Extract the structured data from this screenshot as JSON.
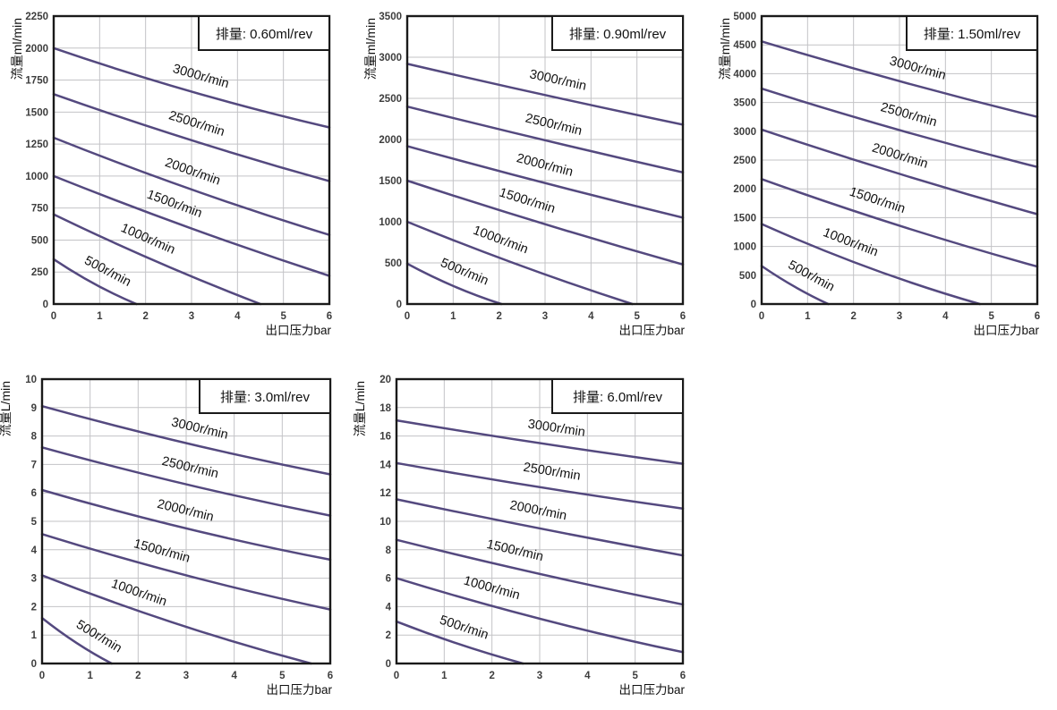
{
  "page": {
    "background": "#ffffff",
    "description": "Pump flow vs outlet pressure performance curves at five displacements"
  },
  "chart_data": [
    {
      "type": "line",
      "title": "排量: 0.60ml/rev",
      "xlabel": "出口压力bar",
      "ylabel": "流量ml/min",
      "xlim": [
        0,
        6
      ],
      "ylim": [
        0,
        2250
      ],
      "xticks": [
        "0",
        "1",
        "2",
        "3",
        "4",
        "5",
        "6"
      ],
      "yticks": [
        "0",
        "250",
        "500",
        "750",
        "1000",
        "1250",
        "1500",
        "1750",
        "2000",
        "2250"
      ],
      "grid": true,
      "legend_position": "labels-on-curves",
      "line_color": "#54497f",
      "series": [
        {
          "name": "3000r/min",
          "label_x": 3.1,
          "points": [
            [
              0,
              2000
            ],
            [
              3,
              1660
            ],
            [
              6,
              1380
            ]
          ]
        },
        {
          "name": "2500r/min",
          "label_x": 3.0,
          "points": [
            [
              0,
              1640
            ],
            [
              3,
              1280
            ],
            [
              6,
              960
            ]
          ]
        },
        {
          "name": "2000r/min",
          "label_x": 2.9,
          "points": [
            [
              0,
              1300
            ],
            [
              3,
              895
            ],
            [
              6,
              540
            ]
          ]
        },
        {
          "name": "1500r/min",
          "label_x": 2.5,
          "points": [
            [
              0,
              1000
            ],
            [
              3,
              590
            ],
            [
              6,
              220
            ]
          ]
        },
        {
          "name": "1000r/min",
          "label_x": 1.9,
          "points": [
            [
              0,
              700
            ],
            [
              2.25,
              330
            ],
            [
              4.5,
              0
            ]
          ]
        },
        {
          "name": "500r/min",
          "label_x": 1.0,
          "points": [
            [
              0,
              350
            ],
            [
              0.9,
              155
            ],
            [
              1.8,
              0
            ]
          ]
        }
      ]
    },
    {
      "type": "line",
      "title": "排量: 0.90ml/rev",
      "xlabel": "出口压力bar",
      "ylabel": "流量ml/min",
      "xlim": [
        0,
        6
      ],
      "ylim": [
        0,
        3500
      ],
      "xticks": [
        "0",
        "1",
        "2",
        "3",
        "4",
        "5",
        "6"
      ],
      "yticks": [
        "0",
        "500",
        "1000",
        "1500",
        "2000",
        "2500",
        "3000",
        "3500"
      ],
      "grid": true,
      "legend_position": "labels-on-curves",
      "line_color": "#54497f",
      "series": [
        {
          "name": "3000r/min",
          "label_x": 3.2,
          "points": [
            [
              0,
              2920
            ],
            [
              3,
              2540
            ],
            [
              6,
              2180
            ]
          ]
        },
        {
          "name": "2500r/min",
          "label_x": 3.1,
          "points": [
            [
              0,
              2400
            ],
            [
              3,
              1990
            ],
            [
              6,
              1600
            ]
          ]
        },
        {
          "name": "2000r/min",
          "label_x": 2.9,
          "points": [
            [
              0,
              1920
            ],
            [
              3,
              1470
            ],
            [
              6,
              1050
            ]
          ]
        },
        {
          "name": "1500r/min",
          "label_x": 2.5,
          "points": [
            [
              0,
              1500
            ],
            [
              3,
              970
            ],
            [
              6,
              480
            ]
          ]
        },
        {
          "name": "1000r/min",
          "label_x": 1.9,
          "points": [
            [
              0,
              1000
            ],
            [
              2.45,
              470
            ],
            [
              4.9,
              0
            ]
          ]
        },
        {
          "name": "500r/min",
          "label_x": 1.1,
          "points": [
            [
              0,
              490
            ],
            [
              1.02,
              215
            ],
            [
              2.05,
              0
            ]
          ]
        }
      ]
    },
    {
      "type": "line",
      "title": "排量: 1.50ml/rev",
      "xlabel": "出口压力bar",
      "ylabel": "流量ml/min",
      "xlim": [
        0,
        6
      ],
      "ylim": [
        0,
        5000
      ],
      "xticks": [
        "0",
        "1",
        "2",
        "3",
        "4",
        "5",
        "6"
      ],
      "yticks": [
        "0",
        "500",
        "1000",
        "1500",
        "2000",
        "2500",
        "3000",
        "3500",
        "4000",
        "4500",
        "5000"
      ],
      "grid": true,
      "legend_position": "labels-on-curves",
      "line_color": "#54497f",
      "series": [
        {
          "name": "3000r/min",
          "label_x": 3.3,
          "points": [
            [
              0,
              4560
            ],
            [
              3,
              3870
            ],
            [
              6,
              3250
            ]
          ]
        },
        {
          "name": "2500r/min",
          "label_x": 3.1,
          "points": [
            [
              0,
              3740
            ],
            [
              3,
              3020
            ],
            [
              6,
              2380
            ]
          ]
        },
        {
          "name": "2000r/min",
          "label_x": 2.9,
          "points": [
            [
              0,
              3030
            ],
            [
              3,
              2260
            ],
            [
              6,
              1560
            ]
          ]
        },
        {
          "name": "1500r/min",
          "label_x": 2.4,
          "points": [
            [
              0,
              2170
            ],
            [
              3,
              1360
            ],
            [
              6,
              650
            ]
          ]
        },
        {
          "name": "1000r/min",
          "label_x": 1.8,
          "points": [
            [
              0,
              1390
            ],
            [
              2.37,
              620
            ],
            [
              4.75,
              0
            ]
          ]
        },
        {
          "name": "500r/min",
          "label_x": 0.9,
          "points": [
            [
              0,
              660
            ],
            [
              0.72,
              300
            ],
            [
              1.45,
              0
            ]
          ]
        }
      ]
    },
    {
      "type": "line",
      "title": "排量: 3.0ml/rev",
      "xlabel": "出口压力bar",
      "ylabel": "流量L/min",
      "xlim": [
        0,
        6
      ],
      "ylim": [
        0,
        10
      ],
      "xticks": [
        "0",
        "1",
        "2",
        "3",
        "4",
        "5",
        "6"
      ],
      "yticks": [
        "0",
        "1",
        "2",
        "3",
        "4",
        "5",
        "6",
        "7",
        "8",
        "9",
        "10"
      ],
      "grid": true,
      "legend_position": "labels-on-curves",
      "line_color": "#54497f",
      "series": [
        {
          "name": "3000r/min",
          "label_x": 3.2,
          "points": [
            [
              0,
              9.05
            ],
            [
              3,
              7.75
            ],
            [
              6,
              6.65
            ]
          ]
        },
        {
          "name": "2500r/min",
          "label_x": 3.0,
          "points": [
            [
              0,
              7.6
            ],
            [
              3,
              6.3
            ],
            [
              6,
              5.2
            ]
          ]
        },
        {
          "name": "2000r/min",
          "label_x": 2.9,
          "points": [
            [
              0,
              6.1
            ],
            [
              3,
              4.75
            ],
            [
              6,
              3.65
            ]
          ]
        },
        {
          "name": "1500r/min",
          "label_x": 2.4,
          "points": [
            [
              0,
              4.55
            ],
            [
              3,
              3.1
            ],
            [
              6,
              1.9
            ]
          ]
        },
        {
          "name": "1000r/min",
          "label_x": 1.9,
          "points": [
            [
              0,
              3.1
            ],
            [
              2.8,
              1.4
            ],
            [
              5.6,
              0
            ]
          ]
        },
        {
          "name": "500r/min",
          "label_x": 1.0,
          "points": [
            [
              0,
              1.6
            ],
            [
              0.72,
              0.72
            ],
            [
              1.45,
              0
            ]
          ]
        }
      ]
    },
    {
      "type": "line",
      "title": "排量: 6.0ml/rev",
      "xlabel": "出口压力bar",
      "ylabel": "流量L/min",
      "xlim": [
        0,
        6
      ],
      "ylim": [
        0,
        20
      ],
      "xticks": [
        "0",
        "1",
        "2",
        "3",
        "4",
        "5",
        "6"
      ],
      "yticks": [
        "0",
        "2",
        "4",
        "6",
        "8",
        "10",
        "12",
        "14",
        "16",
        "18",
        "20"
      ],
      "grid": true,
      "legend_position": "labels-on-curves",
      "line_color": "#54497f",
      "series": [
        {
          "name": "3000r/min",
          "label_x": 3.3,
          "points": [
            [
              0,
              17.1
            ],
            [
              3,
              15.5
            ],
            [
              6,
              14.05
            ]
          ]
        },
        {
          "name": "2500r/min",
          "label_x": 3.2,
          "points": [
            [
              0,
              14.1
            ],
            [
              3,
              12.4
            ],
            [
              6,
              10.9
            ]
          ]
        },
        {
          "name": "2000r/min",
          "label_x": 2.9,
          "points": [
            [
              0,
              11.55
            ],
            [
              3,
              9.5
            ],
            [
              6,
              7.6
            ]
          ]
        },
        {
          "name": "1500r/min",
          "label_x": 2.4,
          "points": [
            [
              0,
              8.7
            ],
            [
              3,
              6.3
            ],
            [
              6,
              4.15
            ]
          ]
        },
        {
          "name": "1000r/min",
          "label_x": 1.9,
          "points": [
            [
              0,
              6.0
            ],
            [
              3,
              3.15
            ],
            [
              6,
              0.8
            ]
          ]
        },
        {
          "name": "500r/min",
          "label_x": 1.3,
          "points": [
            [
              0,
              2.95
            ],
            [
              1.32,
              1.35
            ],
            [
              2.65,
              0
            ]
          ]
        }
      ]
    }
  ],
  "style": {
    "grid_color": "#c3c3c6",
    "border_color": "#1a1a1a",
    "tick_color": "#3d3d3d",
    "label_color": "#111111",
    "title_box_fill": "#ffffff",
    "title_box_border": "#1a1a1a"
  }
}
